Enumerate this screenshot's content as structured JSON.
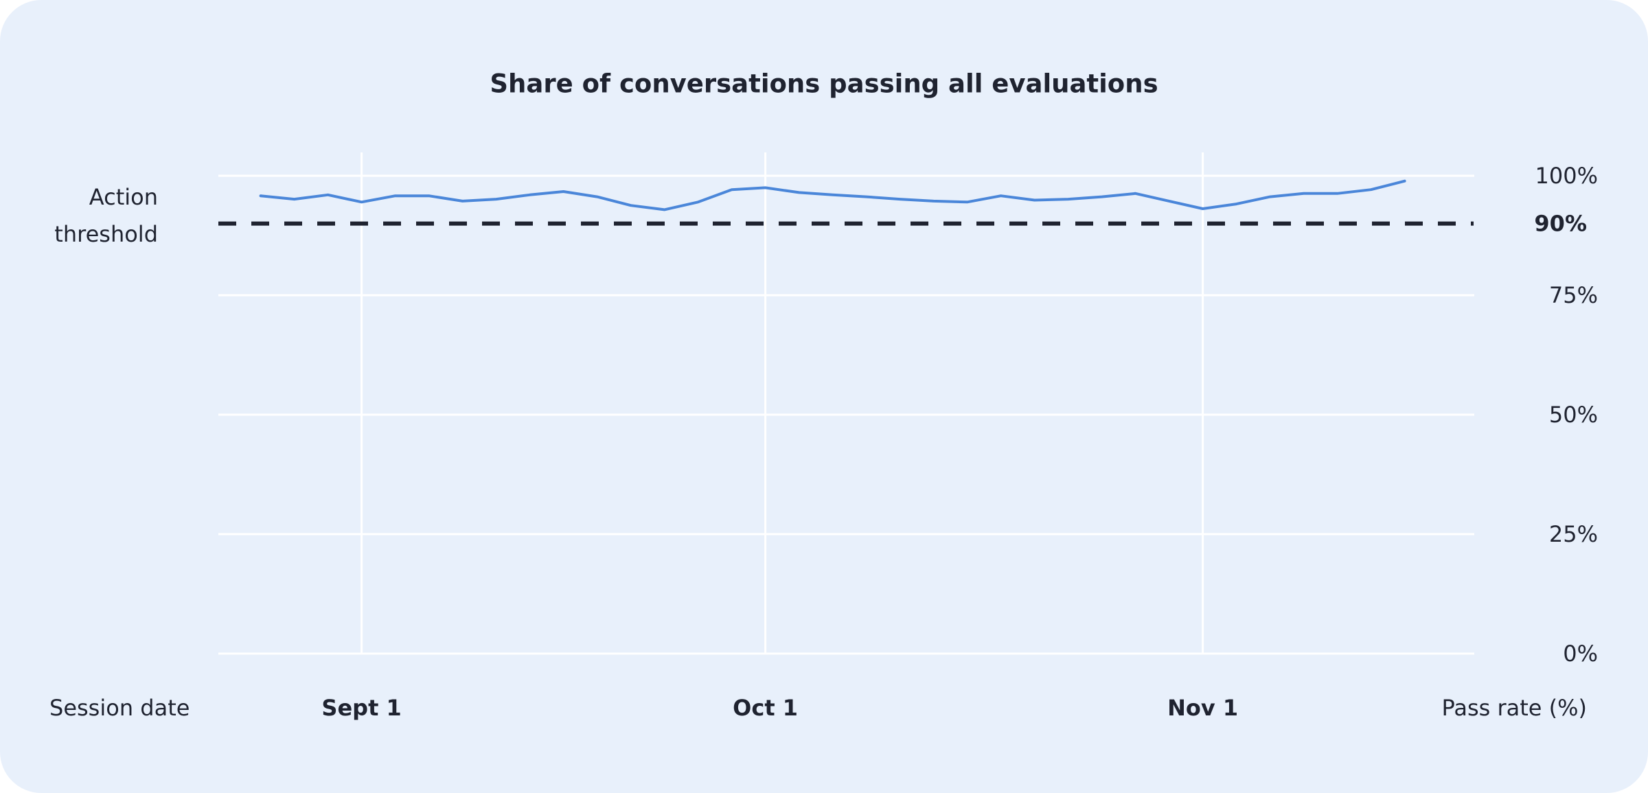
{
  "chart_data": {
    "type": "line",
    "title": "Share of conversations passing all evaluations",
    "x_label": "Session date",
    "y_label": "Pass rate (%)",
    "categories": [
      null,
      null,
      null,
      "Sept 1",
      null,
      null,
      null,
      null,
      null,
      null,
      null,
      null,
      null,
      null,
      null,
      "Oct 1",
      null,
      null,
      null,
      null,
      null,
      null,
      null,
      null,
      null,
      null,
      null,
      null,
      "Nov 1",
      null,
      null,
      null,
      null,
      null,
      null
    ],
    "values": [
      95.8,
      95.1,
      96.0,
      94.5,
      95.8,
      95.8,
      94.7,
      95.1,
      96.0,
      96.7,
      95.6,
      93.8,
      92.9,
      94.5,
      97.1,
      97.5,
      96.5,
      96.0,
      95.6,
      95.1,
      94.7,
      94.5,
      95.8,
      94.9,
      95.1,
      95.6,
      96.3,
      94.7,
      93.1,
      94.1,
      95.6,
      96.3,
      96.3,
      97.1,
      98.9
    ],
    "color": "#4a86d9",
    "ylim": [
      0,
      100
    ],
    "yticks": [
      {
        "value": 0,
        "label": "0%"
      },
      {
        "value": 25,
        "label": "25%"
      },
      {
        "value": 50,
        "label": "50%"
      },
      {
        "value": 75,
        "label": "75%"
      },
      {
        "value": 100,
        "label": "100%"
      }
    ],
    "threshold": {
      "value": 90,
      "label": "90%",
      "text": "Action threshold",
      "color": "#1f2330"
    },
    "grid": true
  }
}
